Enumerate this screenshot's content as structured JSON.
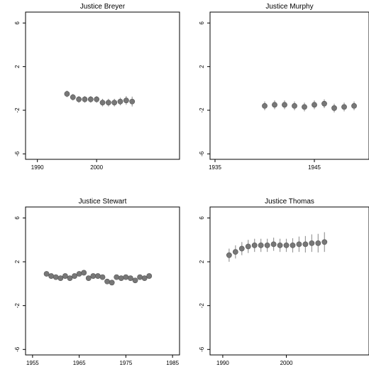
{
  "chart_data": [
    {
      "type": "scatter",
      "title": "Justice Breyer",
      "xlim": [
        1988,
        2014
      ],
      "ylim": [
        -6.5,
        7
      ],
      "xticks": [
        1990,
        2000
      ],
      "yticks": [
        6,
        2,
        -2,
        -6
      ],
      "x": [
        1995,
        1996,
        1997,
        1998,
        1999,
        2000,
        2001,
        2002,
        2003,
        2004,
        2005,
        2006
      ],
      "y": [
        -0.5,
        -0.8,
        -1.0,
        -1.0,
        -1.0,
        -1.0,
        -1.3,
        -1.3,
        -1.3,
        -1.2,
        -1.1,
        -1.2
      ],
      "err": [
        0.3,
        0.3,
        0.3,
        0.3,
        0.3,
        0.3,
        0.35,
        0.35,
        0.35,
        0.35,
        0.4,
        0.45
      ]
    },
    {
      "type": "scatter",
      "title": "Justice Murphy",
      "xlim": [
        1934.5,
        1950.5
      ],
      "ylim": [
        -6.5,
        7
      ],
      "xticks": [
        1935,
        1945
      ],
      "yticks": [
        6,
        2,
        -2,
        -6
      ],
      "x": [
        1940,
        1941,
        1942,
        1943,
        1944,
        1945,
        1946,
        1947,
        1948,
        1949
      ],
      "y": [
        -1.6,
        -1.5,
        -1.5,
        -1.6,
        -1.7,
        -1.5,
        -1.4,
        -1.8,
        -1.7,
        -1.6
      ],
      "err": [
        0.4,
        0.4,
        0.4,
        0.4,
        0.4,
        0.4,
        0.4,
        0.4,
        0.4,
        0.4
      ]
    },
    {
      "type": "scatter",
      "title": "Justice Stewart",
      "xlim": [
        1953.5,
        1986.5
      ],
      "ylim": [
        -6.5,
        7
      ],
      "xticks": [
        1955,
        1965,
        1975,
        1985
      ],
      "yticks": [
        6,
        2,
        -2,
        -6
      ],
      "x": [
        1958,
        1959,
        1960,
        1961,
        1962,
        1963,
        1964,
        1965,
        1966,
        1967,
        1968,
        1969,
        1970,
        1971,
        1972,
        1973,
        1974,
        1975,
        1976,
        1977,
        1978,
        1979,
        1980
      ],
      "y": [
        0.9,
        0.7,
        0.6,
        0.5,
        0.7,
        0.5,
        0.7,
        0.9,
        1.0,
        0.5,
        0.7,
        0.7,
        0.6,
        0.2,
        0.1,
        0.6,
        0.5,
        0.6,
        0.5,
        0.3,
        0.6,
        0.5,
        0.7
      ],
      "err": [
        0.2,
        0.2,
        0.2,
        0.2,
        0.2,
        0.2,
        0.2,
        0.2,
        0.2,
        0.2,
        0.2,
        0.2,
        0.2,
        0.2,
        0.2,
        0.2,
        0.2,
        0.2,
        0.2,
        0.2,
        0.2,
        0.2,
        0.2
      ]
    },
    {
      "type": "scatter",
      "title": "Justice Thomas",
      "xlim": [
        1988,
        2013
      ],
      "ylim": [
        -6.5,
        7
      ],
      "xticks": [
        1990,
        2000
      ],
      "yticks": [
        6,
        2,
        -2,
        -6
      ],
      "x": [
        1991,
        1992,
        1993,
        1994,
        1995,
        1996,
        1997,
        1998,
        1999,
        2000,
        2001,
        2002,
        2003,
        2004,
        2005,
        2006
      ],
      "y": [
        2.6,
        2.9,
        3.2,
        3.4,
        3.5,
        3.5,
        3.5,
        3.6,
        3.5,
        3.5,
        3.5,
        3.6,
        3.6,
        3.7,
        3.7,
        3.8
      ],
      "err": [
        0.6,
        0.6,
        0.6,
        0.6,
        0.6,
        0.6,
        0.6,
        0.6,
        0.6,
        0.6,
        0.65,
        0.7,
        0.75,
        0.8,
        0.85,
        0.9
      ]
    }
  ]
}
